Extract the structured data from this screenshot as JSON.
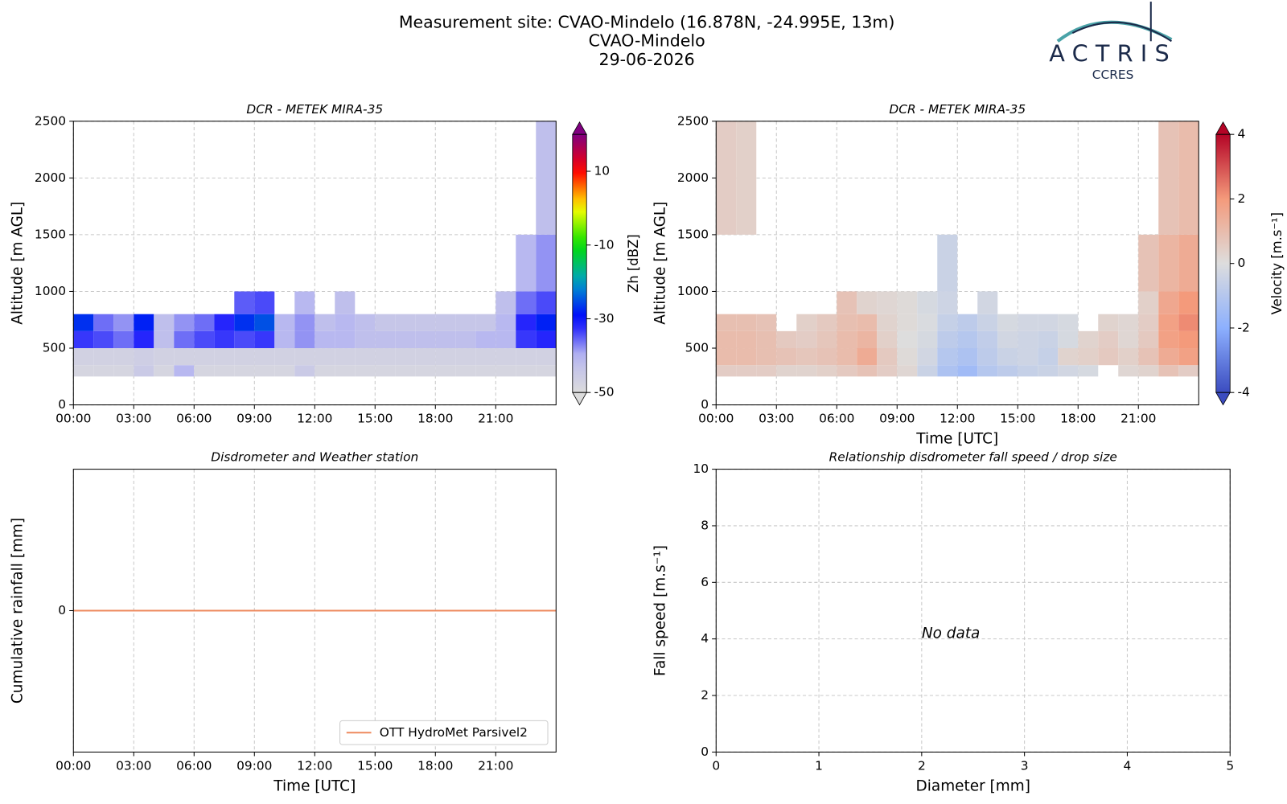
{
  "suptitle": [
    "Measurement site: CVAO-Mindelo (16.878N, -24.995E, 13m)",
    "CVAO-Mindelo",
    "29-06-2026"
  ],
  "logo": {
    "name": "ACTRIS",
    "subtitle": "CCRES"
  },
  "chart_data": [
    {
      "type": "heatmap",
      "title": "DCR - METEK MIRA-35",
      "ylabel": "Altitude [m AGL]",
      "colormap": "reflectivity",
      "clabel": "Zh [dBZ]",
      "clim": [
        -50,
        20
      ],
      "cticks": [
        -50,
        -30,
        -10,
        10
      ],
      "x": [
        0,
        1,
        2,
        3,
        4,
        5,
        6,
        7,
        8,
        9,
        10,
        11,
        12,
        13,
        14,
        15,
        16,
        17,
        18,
        19,
        20,
        21,
        22,
        23,
        24
      ],
      "y": [
        250,
        350,
        500,
        650,
        800,
        1000,
        1500,
        2500
      ],
      "values": [
        [
          -48,
          -48,
          -48,
          -45,
          -48,
          -40,
          -48,
          -48,
          -48,
          -48,
          -48,
          -45,
          -48,
          -48,
          -48,
          -48,
          -48,
          -48,
          -48,
          -48,
          -48,
          -48,
          -48,
          -48
        ],
        [
          -47,
          -47,
          -47,
          -46,
          -47,
          -47,
          -47,
          -47,
          -47,
          -47,
          -47,
          -47,
          -47,
          -47,
          -47,
          -47,
          -47,
          -47,
          -47,
          -47,
          -47,
          -47,
          -47,
          -47
        ],
        [
          -33,
          -34,
          -36,
          -32,
          -42,
          -36,
          -34,
          -33,
          -34,
          -33,
          -40,
          -38,
          -40,
          -40,
          -42,
          -42,
          -42,
          -42,
          -42,
          -42,
          -40,
          -40,
          -33,
          -32
        ],
        [
          -27,
          -36,
          -38,
          -28,
          -42,
          -38,
          -36,
          -32,
          -27,
          -25,
          -40,
          -38,
          -42,
          -40,
          -42,
          -44,
          -44,
          -44,
          -44,
          -44,
          -44,
          -40,
          -32,
          -28
        ],
        [
          null,
          null,
          null,
          null,
          null,
          null,
          null,
          null,
          -35,
          -34,
          null,
          -40,
          null,
          -42,
          null,
          null,
          null,
          null,
          null,
          null,
          null,
          -42,
          -36,
          -34
        ],
        [
          null,
          null,
          null,
          null,
          null,
          null,
          null,
          null,
          null,
          null,
          null,
          null,
          null,
          null,
          null,
          null,
          null,
          null,
          null,
          null,
          null,
          null,
          -40,
          -38
        ],
        [
          null,
          null,
          null,
          null,
          null,
          null,
          null,
          null,
          null,
          null,
          null,
          null,
          null,
          null,
          null,
          null,
          null,
          null,
          null,
          null,
          null,
          null,
          null,
          -42
        ]
      ],
      "xlim": [
        0,
        24
      ],
      "xticks": [
        {
          "value": 0,
          "label": "00:00"
        },
        {
          "value": 3,
          "label": "03:00"
        },
        {
          "value": 6,
          "label": "06:00"
        },
        {
          "value": 9,
          "label": "09:00"
        },
        {
          "value": 12,
          "label": "12:00"
        },
        {
          "value": 15,
          "label": "15:00"
        },
        {
          "value": 18,
          "label": "18:00"
        },
        {
          "value": 21,
          "label": "21:00"
        }
      ],
      "ylim": [
        0,
        2500
      ],
      "yticks": [
        0,
        500,
        1000,
        1500,
        2000,
        2500
      ],
      "grid": true
    },
    {
      "type": "heatmap",
      "title": "DCR - METEK MIRA-35",
      "xlabel": "Time [UTC]",
      "ylabel": "Altitude [m AGL]",
      "colormap": "coolwarm",
      "clabel": "Velocity [m.s⁻¹]",
      "clim": [
        -4,
        4
      ],
      "cticks": [
        -4,
        -2,
        0,
        2,
        4
      ],
      "x": [
        0,
        1,
        2,
        3,
        4,
        5,
        6,
        7,
        8,
        9,
        10,
        11,
        12,
        13,
        14,
        15,
        16,
        17,
        18,
        19,
        20,
        21,
        22,
        23,
        24
      ],
      "y": [
        250,
        350,
        500,
        650,
        800,
        1000,
        1500,
        2500
      ],
      "values": [
        [
          0.5,
          0.5,
          0.5,
          0.3,
          0.3,
          0.4,
          0.6,
          0.8,
          0.5,
          0.2,
          -0.5,
          -1.2,
          -1.5,
          -1,
          -0.8,
          -0.6,
          -0.5,
          -0.3,
          -0.2,
          null,
          0.2,
          0.3,
          0.8,
          0.5
        ],
        [
          1,
          1,
          0.9,
          0.8,
          0.7,
          0.8,
          1,
          1.5,
          0.6,
          0.1,
          -0.3,
          -1,
          -1.2,
          -0.8,
          -0.5,
          -0.4,
          -0.6,
          0.3,
          0.4,
          0.6,
          0.4,
          0.8,
          1.5,
          1.8
        ],
        [
          1,
          1,
          0.9,
          0.6,
          0.5,
          0.7,
          1,
          1.2,
          0.4,
          0,
          -0.2,
          -0.8,
          -1,
          -0.7,
          -0.3,
          -0.4,
          -0.5,
          -0.2,
          0.3,
          0.5,
          0.2,
          0.6,
          1.8,
          2
        ],
        [
          0.9,
          0.9,
          0.8,
          null,
          0.4,
          0.6,
          0.9,
          1,
          0.3,
          0.1,
          -0.1,
          -0.6,
          -0.8,
          -0.5,
          -0.2,
          -0.3,
          -0.3,
          -0.2,
          null,
          0.3,
          0.2,
          0.5,
          1.8,
          2.2
        ],
        [
          null,
          null,
          null,
          null,
          null,
          null,
          0.8,
          0.3,
          0.2,
          0.1,
          -0.2,
          -0.4,
          null,
          -0.3,
          null,
          null,
          null,
          null,
          null,
          null,
          null,
          0.4,
          1.6,
          2
        ],
        [
          null,
          null,
          null,
          null,
          null,
          null,
          null,
          null,
          null,
          null,
          null,
          -0.5,
          null,
          null,
          null,
          null,
          null,
          null,
          null,
          null,
          null,
          0.8,
          1.2,
          1.5
        ],
        [
          0.5,
          0.4,
          null,
          null,
          null,
          null,
          null,
          null,
          null,
          null,
          null,
          null,
          null,
          null,
          null,
          null,
          null,
          null,
          null,
          null,
          null,
          null,
          0.8,
          1
        ]
      ],
      "xlim": [
        0,
        24
      ],
      "xticks": [
        {
          "value": 0,
          "label": "00:00"
        },
        {
          "value": 3,
          "label": "03:00"
        },
        {
          "value": 6,
          "label": "06:00"
        },
        {
          "value": 9,
          "label": "09:00"
        },
        {
          "value": 12,
          "label": "12:00"
        },
        {
          "value": 15,
          "label": "15:00"
        },
        {
          "value": 18,
          "label": "18:00"
        },
        {
          "value": 21,
          "label": "21:00"
        }
      ],
      "ylim": [
        0,
        2500
      ],
      "yticks": [
        0,
        500,
        1000,
        1500,
        2000,
        2500
      ],
      "grid": true
    },
    {
      "type": "line",
      "title": "Disdrometer and Weather station",
      "xlabel": "Time [UTC]",
      "ylabel": "Cumulative rainfall [mm]",
      "x": [
        0,
        24
      ],
      "series": [
        {
          "name": "OTT HydroMet Parsivel2",
          "color": "#ee8a5e",
          "values": [
            0,
            0
          ]
        }
      ],
      "xlim": [
        0,
        24
      ],
      "xticks": [
        {
          "value": 0,
          "label": "00:00"
        },
        {
          "value": 3,
          "label": "03:00"
        },
        {
          "value": 6,
          "label": "06:00"
        },
        {
          "value": 9,
          "label": "09:00"
        },
        {
          "value": 12,
          "label": "12:00"
        },
        {
          "value": 15,
          "label": "15:00"
        },
        {
          "value": 18,
          "label": "18:00"
        },
        {
          "value": 21,
          "label": "21:00"
        }
      ],
      "ylim": [
        -0.055,
        0.055
      ],
      "yticks": [
        0
      ],
      "grid": true,
      "legend": "lower-right"
    },
    {
      "type": "scatter",
      "title": "Relationship disdrometer fall speed / drop size",
      "xlabel": "Diameter [mm]",
      "ylabel": "Fall speed [m.s⁻¹]",
      "annotations": [
        {
          "text": "No data",
          "x": 2,
          "y": 4
        }
      ],
      "xlim": [
        0,
        5
      ],
      "xticks": [
        0,
        1,
        2,
        3,
        4,
        5
      ],
      "ylim": [
        0,
        10
      ],
      "yticks": [
        0,
        2,
        4,
        6,
        8,
        10
      ],
      "grid": true
    }
  ]
}
